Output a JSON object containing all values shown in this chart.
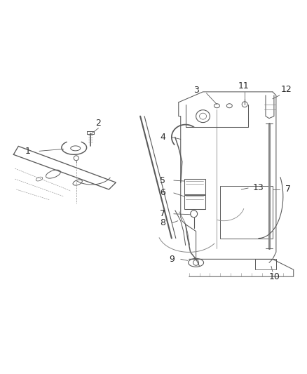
{
  "bg_color": "#ffffff",
  "lc": "#5a5a5a",
  "lc2": "#888888",
  "figsize": [
    4.38,
    5.33
  ],
  "dpi": 100,
  "fs": 9,
  "lw": 0.75,
  "label_color": "#2a2a2a"
}
